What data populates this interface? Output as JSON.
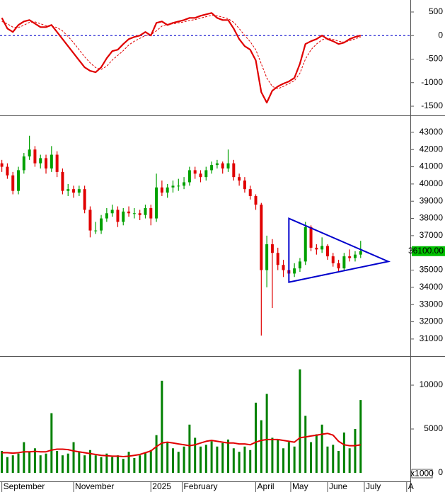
{
  "chart_data": [
    {
      "type": "line",
      "ylim": [
        -1680,
        755
      ],
      "yticks": [
        500,
        0,
        -500,
        -1000,
        -1500
      ],
      "reference_line": {
        "value": 0,
        "color": "#0000cc"
      },
      "series": [
        {
          "color": "#e00000",
          "values": [
            375,
            150,
            75,
            225,
            300,
            330,
            255,
            180,
            180,
            225,
            75,
            -75,
            -225,
            -375,
            -525,
            -675,
            -750,
            -780,
            -675,
            -480,
            -330,
            -300,
            -180,
            -75,
            -30,
            0,
            75,
            0,
            270,
            300,
            225,
            270,
            300,
            330,
            375,
            375,
            420,
            450,
            480,
            375,
            330,
            330,
            150,
            -75,
            -225,
            -300,
            -525,
            -1200,
            -1425,
            -1170,
            -1080,
            -1020,
            -975,
            -900,
            -600,
            -180,
            -120,
            -75,
            0,
            -75,
            -120,
            -180,
            -150,
            -75,
            -30,
            0
          ]
        },
        {
          "color": "#e00000",
          "dashed": true,
          "values": [
            300,
            250,
            180,
            170,
            220,
            280,
            290,
            250,
            210,
            200,
            170,
            100,
            -20,
            -150,
            -300,
            -450,
            -580,
            -680,
            -720,
            -650,
            -520,
            -420,
            -320,
            -200,
            -120,
            -60,
            0,
            20,
            100,
            200,
            240,
            250,
            270,
            290,
            320,
            340,
            370,
            400,
            430,
            420,
            390,
            360,
            280,
            150,
            0,
            -130,
            -300,
            -600,
            -900,
            -1080,
            -1130,
            -1080,
            -1020,
            -960,
            -800,
            -500,
            -300,
            -180,
            -90,
            -60,
            -80,
            -120,
            -140,
            -110,
            -70,
            -30
          ]
        }
      ]
    },
    {
      "type": "candlestick",
      "ylim": [
        30050,
        43900
      ],
      "yticks": [
        31000,
        32000,
        33000,
        34000,
        35000,
        36000,
        37000,
        38000,
        39000,
        40000,
        41000,
        42000,
        43000
      ],
      "up_color": "#00a000",
      "down_color": "#e00000",
      "candles": [
        [
          41200,
          41400,
          40700,
          41000
        ],
        [
          41000,
          41200,
          40300,
          40500
        ],
        [
          40500,
          40700,
          39400,
          39600
        ],
        [
          39600,
          41000,
          39400,
          40800
        ],
        [
          40800,
          41800,
          40600,
          41600
        ],
        [
          41600,
          42800,
          41400,
          42000
        ],
        [
          42000,
          42200,
          41000,
          41200
        ],
        [
          41200,
          41700,
          40900,
          41500
        ],
        [
          41500,
          41700,
          40600,
          40900
        ],
        [
          40900,
          42200,
          40700,
          41700
        ],
        [
          41700,
          41900,
          40400,
          40700
        ],
        [
          40700,
          40900,
          39400,
          39600
        ],
        [
          39600,
          40000,
          39300,
          39700
        ],
        [
          39700,
          39900,
          39200,
          39500
        ],
        [
          39500,
          39900,
          39300,
          39700
        ],
        [
          39700,
          39900,
          38300,
          38500
        ],
        [
          38500,
          38700,
          36900,
          37300
        ],
        [
          37300,
          37800,
          37100,
          37300
        ],
        [
          37300,
          38200,
          37100,
          38000
        ],
        [
          38000,
          38600,
          37800,
          38300
        ],
        [
          38300,
          38800,
          38100,
          38500
        ],
        [
          38500,
          38700,
          37500,
          37800
        ],
        [
          37800,
          38600,
          37600,
          38400
        ],
        [
          38400,
          38700,
          38100,
          38300
        ],
        [
          38300,
          38600,
          38000,
          38300
        ],
        [
          38300,
          38500,
          37900,
          38200
        ],
        [
          38200,
          38800,
          38000,
          38600
        ],
        [
          38600,
          38800,
          37600,
          38000
        ],
        [
          38000,
          40600,
          37800,
          39800
        ],
        [
          39800,
          40200,
          39300,
          39500
        ],
        [
          39500,
          40000,
          39200,
          39800
        ],
        [
          39800,
          40200,
          39500,
          39900
        ],
        [
          39900,
          40300,
          39600,
          39900
        ],
        [
          39900,
          40400,
          39700,
          40100
        ],
        [
          40100,
          41000,
          39900,
          40800
        ],
        [
          40800,
          41000,
          40300,
          40600
        ],
        [
          40600,
          40800,
          40100,
          40400
        ],
        [
          40400,
          41000,
          40200,
          40800
        ],
        [
          40800,
          41300,
          40600,
          41100
        ],
        [
          41100,
          41400,
          40900,
          41200
        ],
        [
          41200,
          41300,
          40600,
          40900
        ],
        [
          40900,
          42000,
          40700,
          41200
        ],
        [
          41200,
          41400,
          40200,
          40400
        ],
        [
          40400,
          40600,
          39900,
          40200
        ],
        [
          40200,
          40400,
          39500,
          39700
        ],
        [
          39700,
          39900,
          39100,
          39300
        ],
        [
          39300,
          39400,
          38500,
          38800
        ],
        [
          38800,
          38900,
          31200,
          35000
        ],
        [
          35000,
          37000,
          34000,
          36500
        ],
        [
          36500,
          36800,
          32800,
          36000
        ],
        [
          36000,
          36300,
          35000,
          35300
        ],
        [
          35300,
          35600,
          34600,
          35000
        ],
        [
          35000,
          35300,
          34400,
          34800
        ],
        [
          34800,
          35400,
          34600,
          35100
        ],
        [
          35100,
          35700,
          34900,
          35500
        ],
        [
          35500,
          37800,
          35300,
          37500
        ],
        [
          37500,
          37600,
          36100,
          36300
        ],
        [
          36300,
          36500,
          35900,
          36200
        ],
        [
          36200,
          36900,
          36000,
          36400
        ],
        [
          36400,
          36500,
          35600,
          35800
        ],
        [
          35800,
          36000,
          35200,
          35400
        ],
        [
          35400,
          35600,
          34900,
          35100
        ],
        [
          35100,
          36000,
          35000,
          35800
        ],
        [
          35800,
          36200,
          35500,
          35700
        ],
        [
          35700,
          36100,
          35500,
          35900
        ],
        [
          35900,
          36700,
          35700,
          36100
        ]
      ],
      "triangle": {
        "color": "#0000cc",
        "points": [
          [
            156,
            38000
          ],
          [
            210,
            35500
          ],
          [
            156,
            34300
          ]
        ]
      },
      "last_price": {
        "value": 36100,
        "label": "36100.00",
        "color": "#00c000"
      }
    },
    {
      "type": "bar",
      "ylim": [
        -970,
        13150
      ],
      "yticks": [
        0,
        5000,
        10000
      ],
      "unit_label": "x1000",
      "x": [
        0,
        3,
        6,
        9,
        12,
        15,
        18,
        21,
        24,
        27,
        30,
        33,
        36,
        39,
        42,
        45,
        48,
        51,
        54,
        57,
        60,
        63,
        66,
        69,
        72,
        75,
        78,
        81,
        84,
        87,
        90,
        93,
        96,
        99,
        102,
        105,
        108,
        111,
        114,
        117,
        120,
        123,
        126,
        129,
        132,
        135,
        138,
        141,
        144,
        147,
        150,
        153,
        156,
        159,
        162,
        165,
        168,
        171,
        174,
        177,
        180,
        183,
        186,
        189,
        192,
        195
      ],
      "xlim": [
        -1,
        222
      ],
      "xticks": [
        {
          "value": 0,
          "label": "September"
        },
        {
          "value": 39,
          "label": "November"
        },
        {
          "value": 81,
          "label": "2025"
        },
        {
          "value": 98,
          "label": "February"
        },
        {
          "value": 138,
          "label": "April"
        },
        {
          "value": 157,
          "label": "May"
        },
        {
          "value": 177,
          "label": "June"
        },
        {
          "value": 197,
          "label": "July"
        },
        {
          "value": 220,
          "label": "A"
        }
      ],
      "series": [
        {
          "color": "#008000",
          "values": [
            2500,
            1800,
            2000,
            2200,
            3500,
            2400,
            2800,
            2000,
            2200,
            6800,
            2500,
            2000,
            2200,
            3500,
            2400,
            2000,
            2600,
            2000,
            1800,
            2200,
            1800,
            2000,
            1600,
            2400,
            1700,
            2000,
            2300,
            2600,
            4300,
            10500,
            3500,
            2800,
            2400,
            3000,
            5500,
            4000,
            3000,
            3200,
            3600,
            3000,
            3400,
            3800,
            2800,
            2400,
            3000,
            2600,
            8000,
            6000,
            9000,
            4000,
            3800,
            2800,
            3500,
            3000,
            11800,
            6500,
            3500,
            4400,
            5500,
            3000,
            3200,
            2500,
            4600,
            2800,
            5000,
            8300
          ]
        },
        {
          "color": "#e00000",
          "line": true,
          "values": [
            2300,
            2300,
            2250,
            2300,
            2400,
            2400,
            2450,
            2400,
            2400,
            2600,
            2700,
            2700,
            2650,
            2500,
            2400,
            2300,
            2200,
            2100,
            2000,
            1950,
            1900,
            1900,
            1850,
            1900,
            2000,
            2100,
            2300,
            2500,
            3000,
            3400,
            3500,
            3400,
            3300,
            3200,
            3100,
            3200,
            3400,
            3600,
            3700,
            3600,
            3500,
            3400,
            3400,
            3300,
            3300,
            3200,
            3500,
            3700,
            3800,
            3800,
            3800,
            3700,
            3600,
            3500,
            4000,
            4100,
            4200,
            4300,
            4400,
            4500,
            4300,
            3600,
            3200,
            3100,
            3100,
            3200
          ]
        }
      ]
    }
  ]
}
